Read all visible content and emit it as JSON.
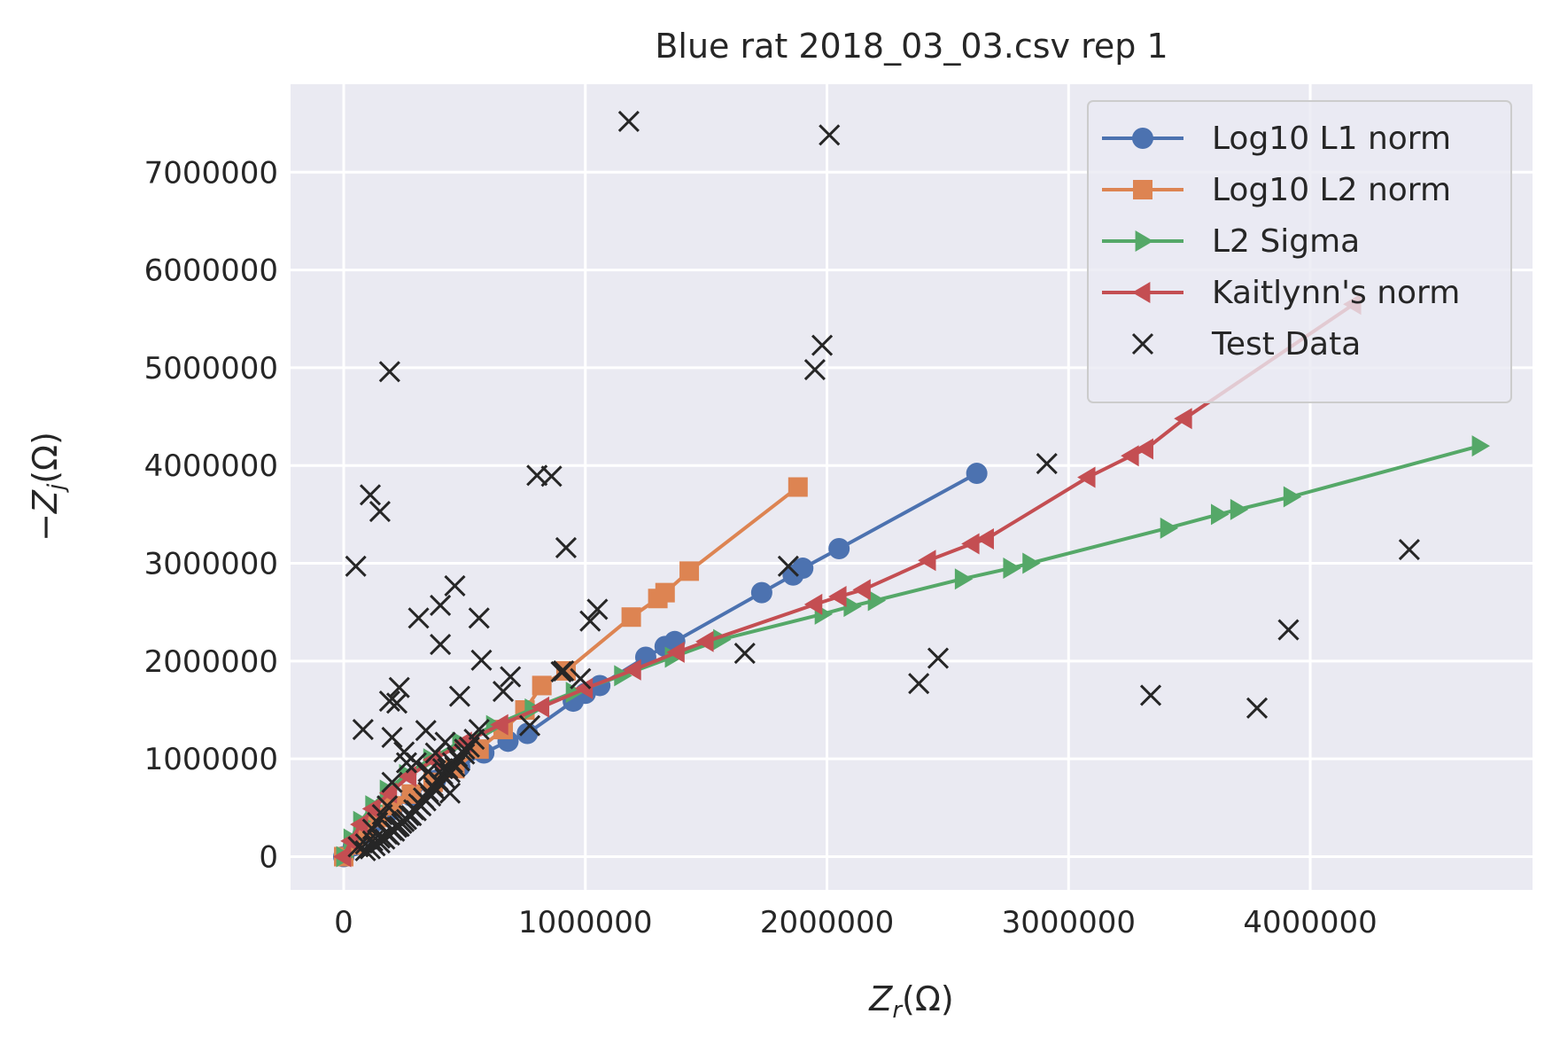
{
  "chart_data": {
    "type": "line",
    "title": "Blue rat 2018_03_03.csv rep 1",
    "xlabel_main": "Z",
    "xlabel_sub": "r",
    "xlabel_unit": "(Ω)",
    "ylabel_prefix": "−Z",
    "ylabel_sub": "j",
    "ylabel_unit": "(Ω)",
    "xlim": [
      -220000,
      4920000
    ],
    "ylim": [
      -340000,
      7900000
    ],
    "xticks": [
      0,
      1000000,
      2000000,
      3000000,
      4000000
    ],
    "xtick_labels": [
      "0",
      "1000000",
      "2000000",
      "3000000",
      "4000000"
    ],
    "yticks": [
      0,
      1000000,
      2000000,
      3000000,
      4000000,
      5000000,
      6000000,
      7000000
    ],
    "ytick_labels": [
      "0",
      "1000000",
      "2000000",
      "3000000",
      "4000000",
      "5000000",
      "6000000",
      "7000000"
    ],
    "grid": true,
    "legend_position": "top-right",
    "series": [
      {
        "name": "Log10 L1 norm",
        "color": "#4c72b0",
        "marker": "circle",
        "x": [
          0,
          40000,
          80000,
          130000,
          200000,
          280000,
          380000,
          480000,
          580000,
          680000,
          760000,
          950000,
          1000000,
          1060000,
          1250000,
          1330000,
          1370000,
          1730000,
          1860000,
          1900000,
          2050000,
          2620000
        ],
        "y": [
          0,
          110000,
          230000,
          360000,
          480000,
          620000,
          780000,
          920000,
          1060000,
          1180000,
          1260000,
          1590000,
          1670000,
          1750000,
          2040000,
          2150000,
          2200000,
          2700000,
          2880000,
          2950000,
          3150000,
          3920000
        ]
      },
      {
        "name": "Log10 L2 norm",
        "color": "#dd8452",
        "marker": "square",
        "x": [
          0,
          40000,
          90000,
          140000,
          200000,
          280000,
          370000,
          460000,
          560000,
          660000,
          750000,
          820000,
          920000,
          1190000,
          1300000,
          1330000,
          1430000,
          1880000
        ],
        "y": [
          0,
          120000,
          260000,
          400000,
          520000,
          640000,
          760000,
          900000,
          1100000,
          1300000,
          1500000,
          1750000,
          1900000,
          2450000,
          2640000,
          2700000,
          2920000,
          3780000
        ]
      },
      {
        "name": "L2 Sigma",
        "color": "#55a868",
        "marker": "triangle-right",
        "x": [
          0,
          30000,
          70000,
          120000,
          180000,
          260000,
          360000,
          480000,
          620000,
          780000,
          950000,
          1150000,
          1360000,
          1560000,
          1980000,
          2100000,
          2200000,
          2560000,
          2760000,
          2840000,
          3410000,
          3620000,
          3700000,
          3920000,
          4700000
        ],
        "y": [
          0,
          180000,
          360000,
          520000,
          680000,
          840000,
          1000000,
          1170000,
          1340000,
          1510000,
          1680000,
          1850000,
          2040000,
          2220000,
          2480000,
          2560000,
          2620000,
          2840000,
          2950000,
          3000000,
          3360000,
          3500000,
          3550000,
          3680000,
          4200000
        ]
      },
      {
        "name": "Kaitlynn's norm",
        "color": "#c44e52",
        "marker": "triangle-left",
        "x": [
          0,
          30000,
          70000,
          120000,
          190000,
          270000,
          370000,
          500000,
          650000,
          820000,
          1000000,
          1200000,
          1380000,
          1500000,
          1950000,
          2050000,
          2150000,
          2420000,
          2600000,
          2660000,
          3080000,
          3260000,
          3320000,
          3480000,
          4180000
        ],
        "y": [
          0,
          160000,
          330000,
          490000,
          650000,
          820000,
          990000,
          1170000,
          1350000,
          1530000,
          1720000,
          1910000,
          2090000,
          2200000,
          2580000,
          2660000,
          2730000,
          3030000,
          3200000,
          3250000,
          3880000,
          4100000,
          4170000,
          4480000,
          5650000
        ]
      }
    ],
    "test_data": {
      "name": "Test Data",
      "color": "#262626",
      "marker": "x",
      "x": [
        60000,
        90000,
        120000,
        150000,
        180000,
        200000,
        220000,
        240000,
        260000,
        280000,
        300000,
        320000,
        340000,
        360000,
        380000,
        400000,
        420000,
        440000,
        460000,
        480000,
        500000,
        520000,
        540000,
        560000,
        90000,
        110000,
        130000,
        150000,
        170000,
        190000,
        210000,
        230000,
        250000,
        270000,
        290000,
        310000,
        330000,
        350000,
        370000,
        390000,
        410000,
        430000,
        450000,
        470000,
        500000,
        1180000,
        2010000,
        190000,
        1980000,
        1950000,
        800000,
        860000,
        110000,
        150000,
        920000,
        50000,
        1050000,
        1020000,
        310000,
        400000,
        460000,
        560000,
        400000,
        570000,
        190000,
        230000,
        480000,
        690000,
        660000,
        900000,
        200000,
        250000,
        80000,
        220000,
        340000,
        420000,
        770000,
        980000,
        910000,
        1660000,
        1840000,
        2910000,
        4410000,
        3910000,
        2380000,
        2460000,
        3340000,
        3780000,
        300000,
        350000,
        380000,
        260000,
        410000,
        440000,
        200000,
        180000,
        160000,
        140000,
        120000
      ],
      "y": [
        100000,
        130000,
        160000,
        190000,
        230000,
        270000,
        300000,
        340000,
        380000,
        420000,
        470000,
        520000,
        570000,
        620000,
        680000,
        740000,
        800000,
        860000,
        920000,
        980000,
        1050000,
        1120000,
        1200000,
        1300000,
        60000,
        80000,
        110000,
        140000,
        180000,
        220000,
        260000,
        310000,
        360000,
        420000,
        480000,
        540000,
        600000,
        660000,
        720000,
        780000,
        840000,
        900000,
        960000,
        1020000,
        1100000,
        7520000,
        7380000,
        4960000,
        5230000,
        4980000,
        3900000,
        3890000,
        3700000,
        3530000,
        3160000,
        2970000,
        2530000,
        2410000,
        2440000,
        2570000,
        2770000,
        2440000,
        2170000,
        2010000,
        1590000,
        1730000,
        1640000,
        1840000,
        1690000,
        1890000,
        1220000,
        1070000,
        1300000,
        1570000,
        1290000,
        1170000,
        1340000,
        1820000,
        1900000,
        2080000,
        2970000,
        4020000,
        3140000,
        2320000,
        1770000,
        2030000,
        1650000,
        1520000,
        960000,
        870000,
        1060000,
        960000,
        900000,
        650000,
        760000,
        520000,
        430000,
        350000,
        280000
      ]
    }
  }
}
